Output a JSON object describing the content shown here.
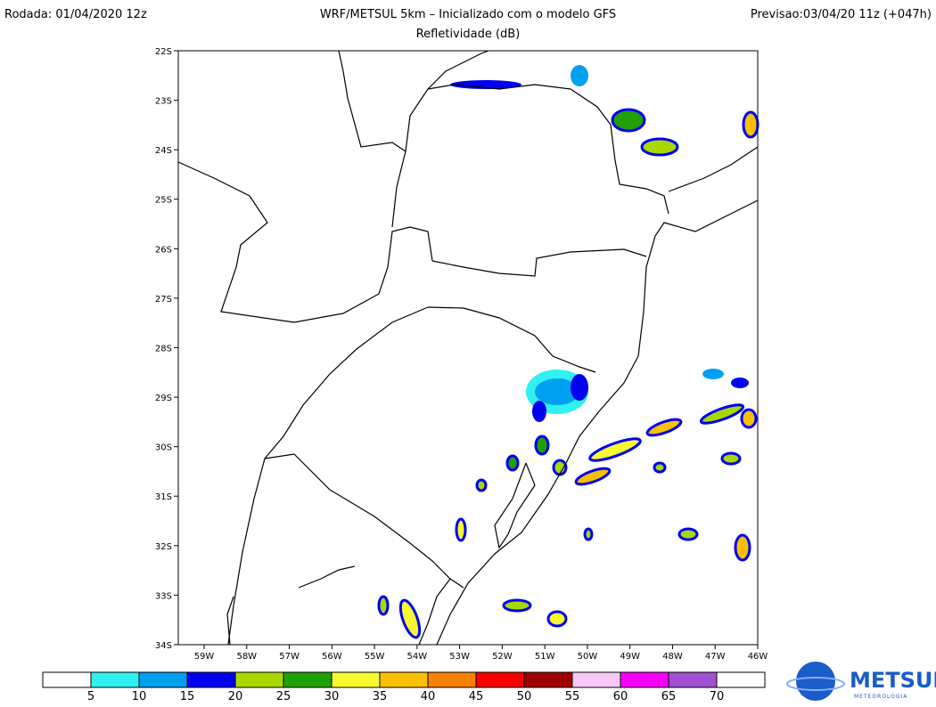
{
  "header": {
    "left": "Rodada: 01/04/2020 12z",
    "center": "WRF/METSUL 5km – Inicializado com o modelo GFS",
    "right": "Previsao:03/04/20 11z (+047h)",
    "subtitle": "Refletividade (dB)"
  },
  "map": {
    "lat_labels": [
      "22S",
      "23S",
      "24S",
      "25S",
      "26S",
      "27S",
      "28S",
      "29S",
      "30S",
      "31S",
      "32S",
      "33S",
      "34S"
    ],
    "lon_labels": [
      "59W",
      "58W",
      "57W",
      "56W",
      "55W",
      "54W",
      "53W",
      "52W",
      "51W",
      "50W",
      "49W",
      "48W",
      "47W",
      "46W"
    ]
  },
  "colorbar": {
    "labels": [
      "5",
      "10",
      "15",
      "20",
      "25",
      "30",
      "35",
      "40",
      "45",
      "50",
      "55",
      "60",
      "65",
      "70"
    ],
    "colors": [
      "#ffffff",
      "#30f0f0",
      "#00a0f0",
      "#0000f0",
      "#a8d800",
      "#20a000",
      "#f8f830",
      "#f8c000",
      "#f88000",
      "#f80000",
      "#a00000",
      "#f8c8f8",
      "#f800f8",
      "#a050d0",
      "#ffffff"
    ]
  },
  "logo": {
    "name": "METSUL",
    "tagline": "METEOROLOGIA"
  }
}
